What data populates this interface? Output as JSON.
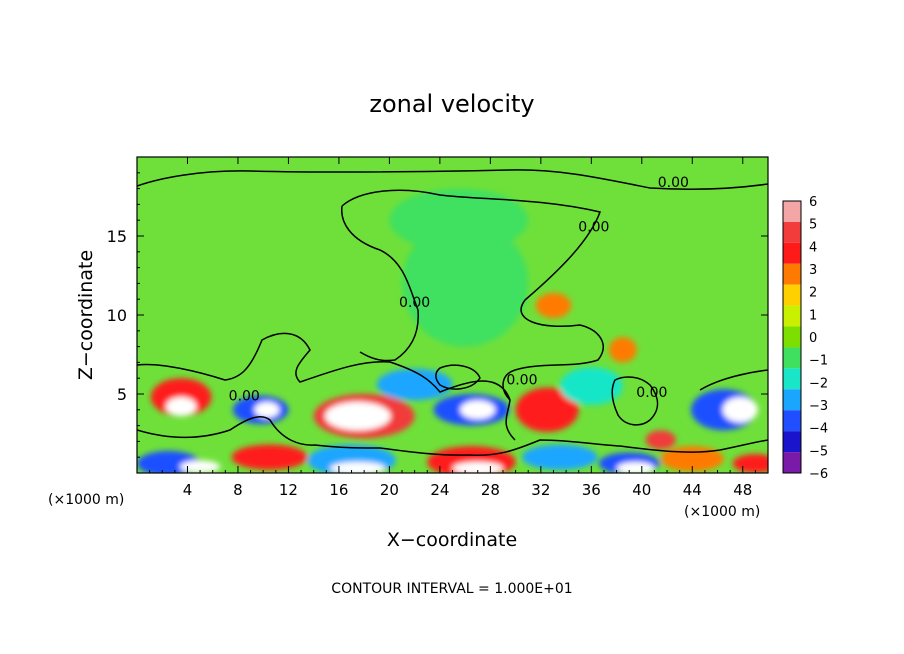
{
  "chart_data": {
    "type": "heatmap",
    "title": "zonal velocity",
    "xlabel": "X−coordinate",
    "ylabel": "Z−coordinate",
    "x_unit_left": "(×1000 m)",
    "x_unit_right": "(×1000 m)",
    "footer": "CONTOUR INTERVAL = 1.000E+01",
    "xlim": [
      0,
      50
    ],
    "ylim": [
      0,
      20
    ],
    "xticks": [
      4,
      8,
      12,
      16,
      20,
      24,
      28,
      32,
      36,
      40,
      44,
      48
    ],
    "xtick_labels": [
      "4",
      "8",
      "12",
      "16",
      "20",
      "24",
      "28",
      "32",
      "36",
      "40",
      "44",
      "48"
    ],
    "yticks": [
      5,
      10,
      15
    ],
    "ytick_labels": [
      "5",
      "10",
      "15"
    ],
    "colorbar": {
      "levels": [
        6,
        5,
        4,
        3,
        2,
        1,
        0,
        -1,
        -2,
        -3,
        -4,
        -5,
        -6
      ],
      "level_labels": [
        "6",
        "5",
        "4",
        "3",
        "2",
        "1",
        "0",
        "−1",
        "−2",
        "−3",
        "−4",
        "−5",
        "−6"
      ],
      "colors": [
        "#f4a6a6",
        "#f23b3b",
        "#ff1a1a",
        "#ff7a00",
        "#ffd000",
        "#c8f000",
        "#7ddf00",
        "#3fe060",
        "#19e6c8",
        "#1aa6ff",
        "#1f4fff",
        "#1a14cc",
        "#7a1aa8"
      ]
    },
    "background_color": "#6fe03a",
    "contour_labels": [
      {
        "text": "0.00",
        "x": 42.5,
        "z": 18.1
      },
      {
        "text": "0.00",
        "x": 36.2,
        "z": 15.3
      },
      {
        "text": "0.00",
        "x": 22.0,
        "z": 10.5
      },
      {
        "text": "0.00",
        "x": 8.5,
        "z": 4.6
      },
      {
        "text": "0.00",
        "x": 30.5,
        "z": 5.6
      },
      {
        "text": "0.00",
        "x": 40.8,
        "z": 4.8
      }
    ],
    "features": [
      {
        "x": 3.5,
        "z": 4.8,
        "rx": 2.4,
        "rz": 1.2,
        "level": 4
      },
      {
        "x": 3.5,
        "z": 4.2,
        "rx": 1.2,
        "rz": 0.6,
        "level": 6
      },
      {
        "x": 9.8,
        "z": 4.0,
        "rx": 2.2,
        "rz": 0.9,
        "level": -4
      },
      {
        "x": 10.3,
        "z": 4.0,
        "rx": 1.0,
        "rz": 0.5,
        "level": 6
      },
      {
        "x": 18.0,
        "z": 3.6,
        "rx": 4.0,
        "rz": 1.4,
        "level": 5
      },
      {
        "x": 17.5,
        "z": 3.6,
        "rx": 2.6,
        "rz": 0.9,
        "level": 6
      },
      {
        "x": 26.5,
        "z": 4.0,
        "rx": 3.0,
        "rz": 1.0,
        "level": -4
      },
      {
        "x": 27.0,
        "z": 4.0,
        "rx": 1.4,
        "rz": 0.6,
        "level": 6
      },
      {
        "x": 32.5,
        "z": 4.0,
        "rx": 2.5,
        "rz": 1.4,
        "level": 4
      },
      {
        "x": 33.0,
        "z": 10.6,
        "rx": 1.4,
        "rz": 0.8,
        "level": 3
      },
      {
        "x": 38.5,
        "z": 7.8,
        "rx": 1.1,
        "rz": 0.8,
        "level": 3
      },
      {
        "x": 41.5,
        "z": 2.1,
        "rx": 1.2,
        "rz": 0.6,
        "level": 5
      },
      {
        "x": 46.5,
        "z": 4.0,
        "rx": 2.6,
        "rz": 1.3,
        "level": -4
      },
      {
        "x": 47.8,
        "z": 4.0,
        "rx": 1.4,
        "rz": 0.8,
        "level": 6
      },
      {
        "x": 2.5,
        "z": 0.6,
        "rx": 2.5,
        "rz": 0.8,
        "level": -4
      },
      {
        "x": 5.0,
        "z": 0.4,
        "rx": 1.6,
        "rz": 0.4,
        "level": 6
      },
      {
        "x": 10.5,
        "z": 1.0,
        "rx": 3.0,
        "rz": 0.8,
        "level": 4
      },
      {
        "x": 17.0,
        "z": 0.8,
        "rx": 3.5,
        "rz": 1.0,
        "level": -3
      },
      {
        "x": 17.5,
        "z": 0.3,
        "rx": 2.2,
        "rz": 0.4,
        "level": 6
      },
      {
        "x": 26.5,
        "z": 0.7,
        "rx": 3.5,
        "rz": 1.0,
        "level": 4
      },
      {
        "x": 27.0,
        "z": 0.3,
        "rx": 2.0,
        "rz": 0.4,
        "level": 6
      },
      {
        "x": 33.5,
        "z": 1.0,
        "rx": 3.0,
        "rz": 0.8,
        "level": -3
      },
      {
        "x": 39.0,
        "z": 0.6,
        "rx": 2.4,
        "rz": 0.7,
        "level": -4
      },
      {
        "x": 39.5,
        "z": 0.3,
        "rx": 1.5,
        "rz": 0.4,
        "level": 6
      },
      {
        "x": 44.0,
        "z": 0.9,
        "rx": 2.5,
        "rz": 0.8,
        "level": 3
      },
      {
        "x": 49.0,
        "z": 0.6,
        "rx": 1.8,
        "rz": 0.6,
        "level": 4
      },
      {
        "x": 26.0,
        "z": 12.0,
        "rx": 5.0,
        "rz": 4.0,
        "level": -1
      },
      {
        "x": 25.5,
        "z": 16.0,
        "rx": 5.5,
        "rz": 2.0,
        "level": -1
      },
      {
        "x": 22.0,
        "z": 5.6,
        "rx": 3.0,
        "rz": 1.0,
        "level": -3
      },
      {
        "x": 36.0,
        "z": 5.5,
        "rx": 2.5,
        "rz": 1.2,
        "level": -2
      }
    ]
  }
}
